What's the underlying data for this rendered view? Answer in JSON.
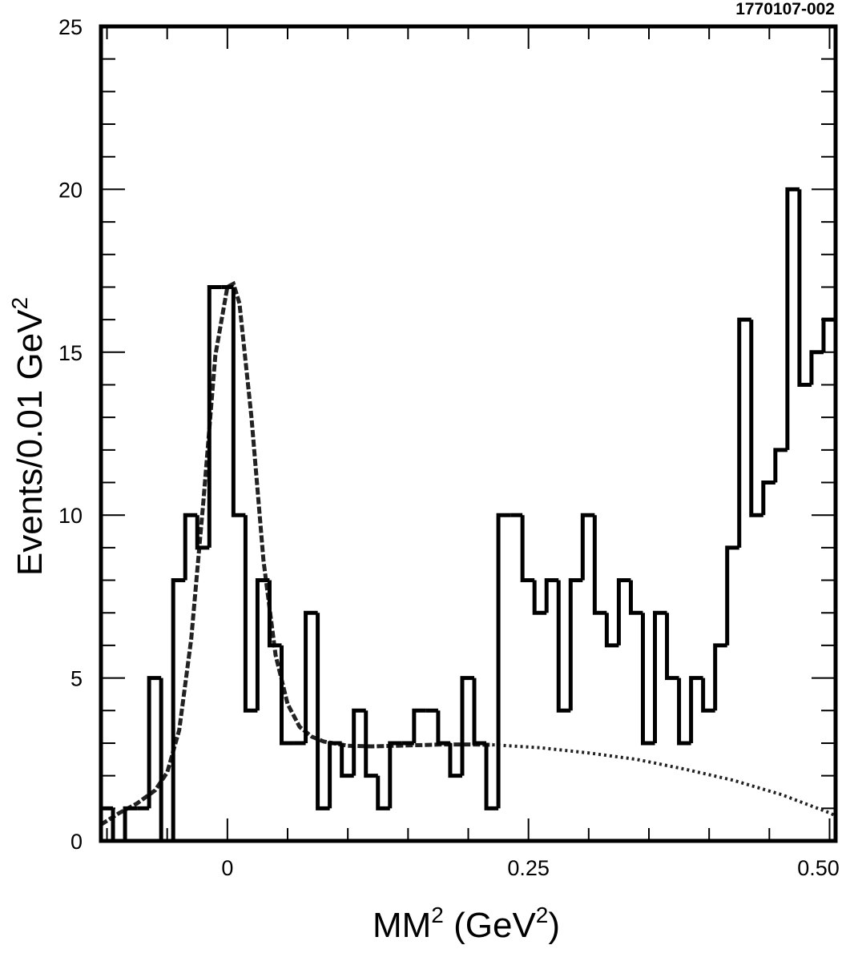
{
  "figure_id": "1770107-002",
  "chart_data": {
    "type": "histogram",
    "xlabel": "MM",
    "xlabel_unit": "GeV",
    "ylabel": "Events/0.01 GeV",
    "x_tick_labels": [
      "0",
      "0.25",
      "0.50"
    ],
    "x_ticks": [
      0,
      0.25,
      0.5
    ],
    "y_tick_labels": [
      "0",
      "5",
      "10",
      "15",
      "20",
      "25"
    ],
    "y_ticks": [
      0,
      5,
      10,
      15,
      20,
      25
    ],
    "xlim": [
      -0.105,
      0.505
    ],
    "ylim": [
      0,
      25
    ],
    "bin_width": 0.01,
    "bin_edges_start": -0.105,
    "counts": [
      1,
      0,
      1,
      1,
      5,
      0,
      8,
      10,
      9,
      17,
      17,
      10,
      4,
      8,
      6,
      3,
      3,
      7,
      1,
      3,
      2,
      4,
      2,
      1,
      3,
      3,
      4,
      4,
      3,
      2,
      5,
      3,
      1,
      10,
      10,
      8,
      7,
      8,
      4,
      8,
      10,
      7,
      6,
      8,
      7,
      3,
      7,
      5,
      3,
      5,
      4,
      6,
      9,
      16,
      10,
      11,
      12,
      20,
      14,
      15,
      16
    ],
    "fit_curve": {
      "style": "dashed",
      "x": [
        -0.105,
        -0.09,
        -0.075,
        -0.06,
        -0.05,
        -0.04,
        -0.03,
        -0.02,
        -0.01,
        0,
        0.005,
        0.01,
        0.02,
        0.03,
        0.04,
        0.05,
        0.06,
        0.07,
        0.08,
        0.1,
        0.12,
        0.15,
        0.18,
        0.2,
        0.22
      ],
      "y": [
        0.5,
        0.85,
        1.15,
        1.55,
        2.1,
        3.4,
        6.2,
        10.4,
        14.9,
        17.0,
        17.1,
        16.5,
        13.0,
        8.6,
        5.7,
        4.2,
        3.5,
        3.2,
        3.05,
        2.92,
        2.9,
        2.93,
        2.96,
        2.96,
        2.95
      ]
    },
    "background_curve": {
      "style": "dotted",
      "x": [
        0.22,
        0.26,
        0.3,
        0.34,
        0.38,
        0.42,
        0.46,
        0.5,
        0.505
      ],
      "y": [
        2.95,
        2.86,
        2.7,
        2.5,
        2.2,
        1.86,
        1.42,
        0.86,
        0.77
      ]
    }
  }
}
